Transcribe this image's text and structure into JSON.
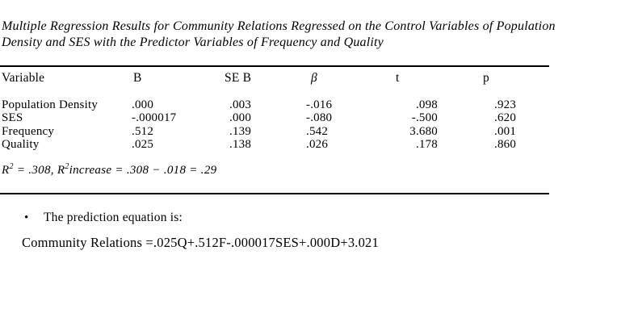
{
  "page": {
    "background": "#ffffff",
    "text_color": "#000000",
    "rule_color": "#000000"
  },
  "title": {
    "line1": "Multiple Regression Results for Community Relations Regressed on the Control Variables of Population",
    "line2": "Density and SES with the Predictor Variables of Frequency and Quality"
  },
  "table": {
    "columns": [
      "Variable",
      "B",
      "SE B",
      "β",
      "t",
      "p"
    ],
    "rows": [
      [
        "Population Density",
        ".000",
        ".003",
        "-.016",
        ".098",
        ".923"
      ],
      [
        "SES",
        "-.000017",
        ".000",
        "-.080",
        "-.500",
        ".620"
      ],
      [
        "Frequency",
        ".512",
        ".139",
        ".542",
        "3.680",
        ".001"
      ],
      [
        "Quality",
        ".025",
        ".138",
        ".026",
        ".178",
        ".860"
      ]
    ],
    "note_segments": [
      {
        "text": "R"
      },
      {
        "text": "2",
        "sup": true
      },
      {
        "text": " = .308, "
      },
      {
        "text": "R"
      },
      {
        "text": "2",
        "sup": true
      },
      {
        "text": "increase"
      },
      {
        "text": " = .308 − .018 = .29"
      }
    ]
  },
  "bullet": {
    "marker": "•",
    "text": "The prediction equation is:"
  },
  "equation": "Community Relations =.025Q+.512F-.000017SES+.000D+3.021"
}
